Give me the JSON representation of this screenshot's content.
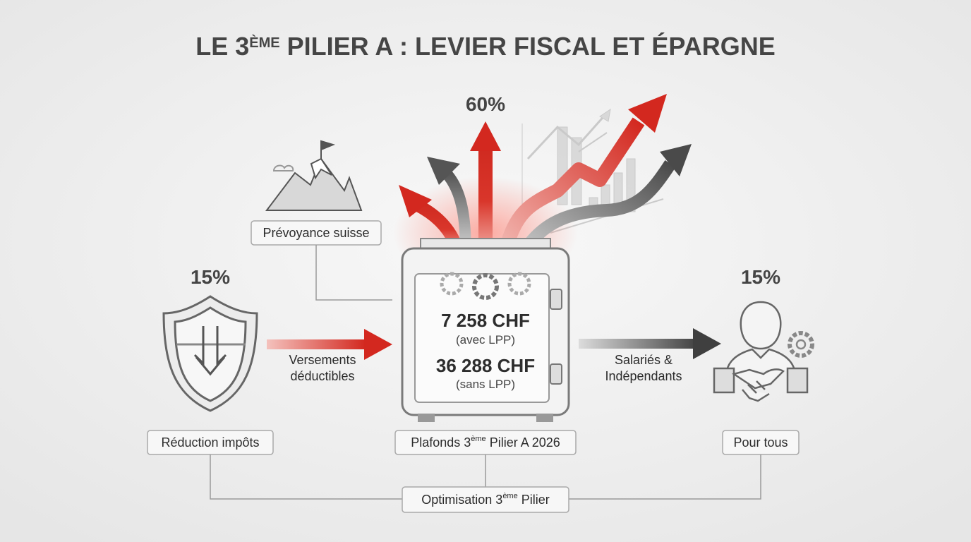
{
  "title": {
    "before": "LE 3",
    "sup": "ÈME",
    "after": " PILIER A : LEVIER FISCAL ET ÉPARGNE"
  },
  "growth": {
    "percent": "60%"
  },
  "tax": {
    "percent": "15%",
    "label": "Réduction impôts"
  },
  "flow_left": {
    "lines": [
      "Versements",
      "déductibles"
    ]
  },
  "prevoyance": {
    "label": "Prévoyance suisse"
  },
  "safe": {
    "amounts": [
      {
        "value": "7 258 CHF",
        "note": "(avec LPP)"
      },
      {
        "value": "36 288 CHF",
        "note": "(sans LPP)"
      }
    ],
    "label": {
      "before": "Plafonds 3",
      "sup": "ème",
      "after": " Pilier A 2026"
    }
  },
  "audience": {
    "percent": "15%",
    "label": "Pour tous"
  },
  "flow_right": {
    "lines": [
      "Salariés &",
      "Indépendants"
    ]
  },
  "footer": {
    "before": "Optimisation 3",
    "sup": "ème",
    "after": " Pilier"
  }
}
